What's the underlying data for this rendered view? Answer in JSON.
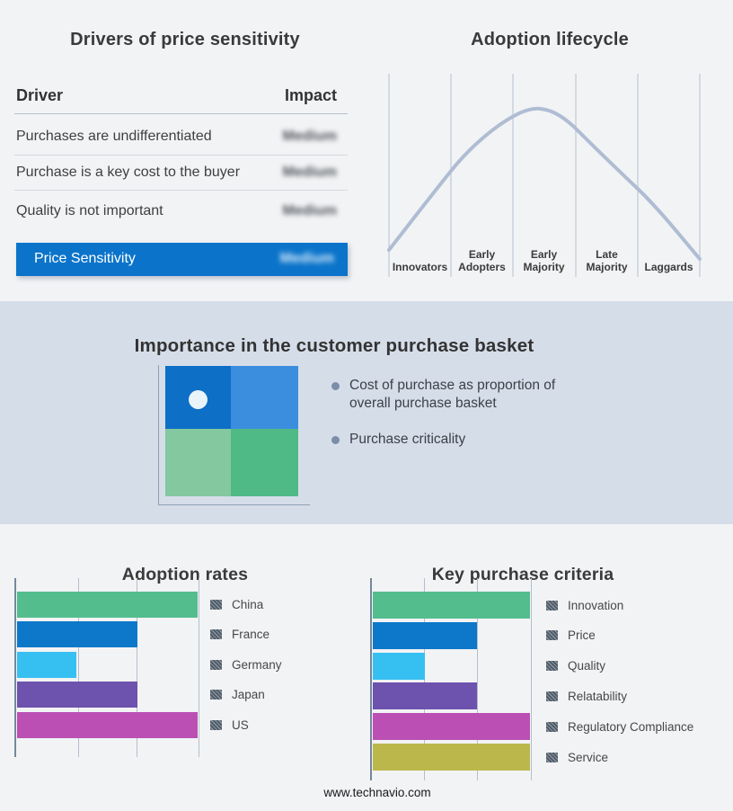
{
  "page": {
    "footer_url": "www.technavio.com"
  },
  "drivers_panel": {
    "title": "Drivers of price sensitivity",
    "columns": {
      "driver": "Driver",
      "impact": "Impact"
    },
    "rows": [
      {
        "driver": "Purchases are undifferentiated",
        "impact": "Medium"
      },
      {
        "driver": "Purchase is a key cost to the buyer",
        "impact": "Medium"
      },
      {
        "driver": "Quality is not important",
        "impact": "Medium"
      }
    ],
    "highlight_row": {
      "label": "Price Sensitivity",
      "impact": "Medium",
      "bg": "#0b74ca"
    }
  },
  "lifecycle": {
    "title": "Adoption lifecycle",
    "stages": [
      "Innovators",
      "Early Adopters",
      "Early Majority",
      "Late Majority",
      "Laggards"
    ],
    "curve_color": "#afbdd3"
  },
  "basket": {
    "title": "Importance in the customer purchase basket",
    "band_bg": "#d5dde9",
    "bullets": [
      "Cost of purchase as proportion of overall purchase basket",
      "Purchase criticality"
    ],
    "quadrant_colors": {
      "top_left": "#0d6fc6",
      "top_right": "#3b8ede",
      "bottom_left": "#84c8a0",
      "bottom_right": "#4fba85"
    },
    "marker_color": "#e9f3fa"
  },
  "chart_data": [
    {
      "type": "line",
      "title": "Adoption lifecycle",
      "categories": [
        "Innovators",
        "Early Adopters",
        "Early Majority",
        "Late Majority",
        "Laggards"
      ],
      "shape": "bell curve",
      "peak_category": "Early Majority",
      "normalized_heights_at_gridlines": [
        0.14,
        0.52,
        0.77,
        0.73,
        0.43,
        0.09
      ],
      "grid": true,
      "legend_position": "none",
      "line_color": "#afbdd3"
    },
    {
      "type": "bar",
      "orientation": "horizontal",
      "title": "Adoption rates",
      "categories": [
        "China",
        "France",
        "Germany",
        "Japan",
        "US"
      ],
      "values": [
        3,
        2,
        1,
        2,
        3
      ],
      "value_unit": "gridline units (no numeric axis labels shown)",
      "colors": [
        "#53bd8e",
        "#0d78ca",
        "#36c0f2",
        "#6d52ae",
        "#bb4fb4"
      ],
      "grid": true,
      "legend_position": "right"
    },
    {
      "type": "bar",
      "orientation": "horizontal",
      "title": "Key purchase criteria",
      "categories": [
        "Innovation",
        "Price",
        "Quality",
        "Relatability",
        "Regulatory Compliance",
        "Service"
      ],
      "values": [
        3,
        2,
        1,
        2,
        3,
        3
      ],
      "value_unit": "gridline units (no numeric axis labels shown)",
      "colors": [
        "#53bd8e",
        "#0d78ca",
        "#36c0f2",
        "#6d52ae",
        "#bb4fb4",
        "#bcb74b"
      ],
      "grid": true,
      "legend_position": "right"
    }
  ]
}
